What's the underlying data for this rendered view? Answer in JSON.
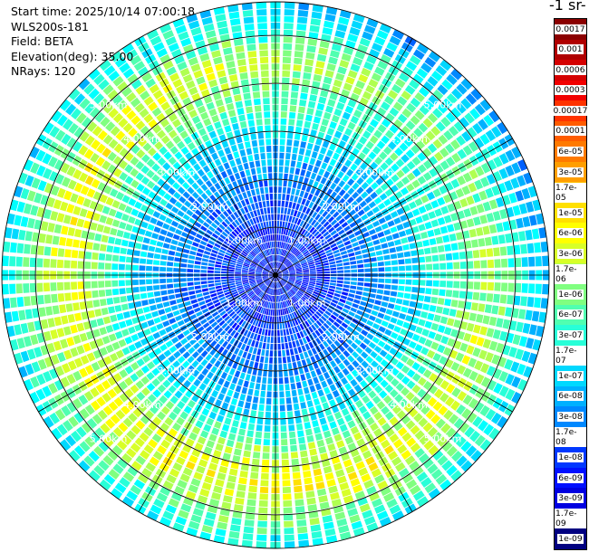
{
  "info": {
    "start_time": "Start time: 2025/10/14 07:00:18",
    "instrument": "WLS200s-181",
    "field": "Field: BETA",
    "elevation": "Elevation(deg): 35.00",
    "nrays": "NRays: 120"
  },
  "colorbar": {
    "title": "-1 sr-",
    "labels": [
      "0.0017",
      "0.001",
      "0.0006",
      "0.0003",
      "0.00017",
      "0.0001",
      "6e-05",
      "3e-05",
      "1.7e-05",
      "1e-05",
      "6e-06",
      "3e-06",
      "1.7e-06",
      "1e-06",
      "6e-07",
      "3e-07",
      "1.7e-07",
      "1e-07",
      "6e-08",
      "3e-08",
      "1.7e-08",
      "1e-08",
      "6e-09",
      "3e-09",
      "1.7e-09",
      "1e-09"
    ],
    "colors": [
      "#8b0000",
      "#b00000",
      "#d50000",
      "#f20000",
      "#ff3300",
      "#ff5c00",
      "#ff7a00",
      "#ff9e00",
      "#ffc000",
      "#ffe000",
      "#ffff00",
      "#d8ff28",
      "#b0ff50",
      "#80ff80",
      "#50ffb0",
      "#28ffd8",
      "#00ffff",
      "#00d8ff",
      "#00b0ff",
      "#0088ff",
      "#0060ff",
      "#0038ff",
      "#0010ff",
      "#0000e0",
      "#0000b0",
      "#000080"
    ]
  },
  "chart_data": {
    "type": "ppi",
    "field": "BETA",
    "elevation_deg": 35.0,
    "n_rays": 120,
    "range_rings_km": [
      1,
      2,
      3,
      4,
      5
    ],
    "range_ring_labels": [
      "1.00km",
      "2.00km",
      "3.00km",
      "4.00km",
      "5.00km"
    ],
    "max_range_km": 5.7,
    "radial_profile": [
      {
        "range_km": 0.0,
        "color_index": 22
      },
      {
        "range_km": 1.0,
        "color_index": 21
      },
      {
        "range_km": 2.0,
        "color_index": 19
      },
      {
        "range_km": 2.8,
        "color_index": 17
      },
      {
        "range_km": 3.6,
        "color_index": 14
      },
      {
        "range_km": 4.4,
        "color_index": 11
      },
      {
        "range_km": 5.0,
        "color_index": 14
      },
      {
        "range_km": 5.7,
        "color_index": 17
      }
    ]
  }
}
